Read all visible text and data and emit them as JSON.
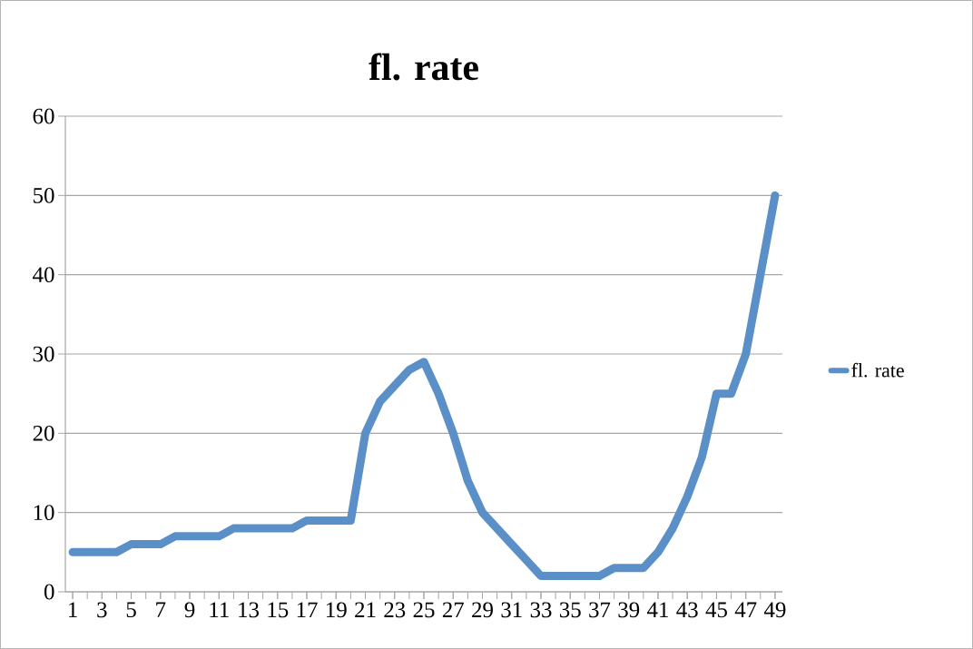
{
  "chart_data": {
    "type": "line",
    "title": "fl. rate",
    "categories": [
      "1",
      null,
      "3",
      null,
      "5",
      null,
      "7",
      null,
      "9",
      null,
      "11",
      null,
      "13",
      null,
      "15",
      null,
      "17",
      null,
      "19",
      null,
      "21",
      null,
      "23",
      null,
      "25",
      null,
      "27",
      null,
      "29",
      null,
      "31",
      null,
      "33",
      null,
      "35",
      null,
      "37",
      null,
      "39",
      null,
      "41",
      null,
      "43",
      null,
      "45",
      null,
      "47",
      null,
      "49"
    ],
    "series": [
      {
        "name": "fl. rate",
        "color": "#5b8fc8",
        "values": [
          5,
          5,
          5,
          5,
          6,
          6,
          6,
          7,
          7,
          7,
          7,
          8,
          8,
          8,
          8,
          8,
          9,
          9,
          9,
          9,
          20,
          24,
          26,
          28,
          29,
          25,
          20,
          14,
          10,
          8,
          6,
          4,
          2,
          2,
          2,
          2,
          2,
          3,
          3,
          3,
          5,
          8,
          12,
          17,
          25,
          25,
          30,
          40,
          50
        ]
      }
    ],
    "ylim": [
      0,
      60
    ],
    "yticks": [
      0,
      10,
      20,
      30,
      40,
      50,
      60
    ],
    "grid": "y",
    "legend": "right",
    "marker": "none",
    "line_style": "solid"
  }
}
